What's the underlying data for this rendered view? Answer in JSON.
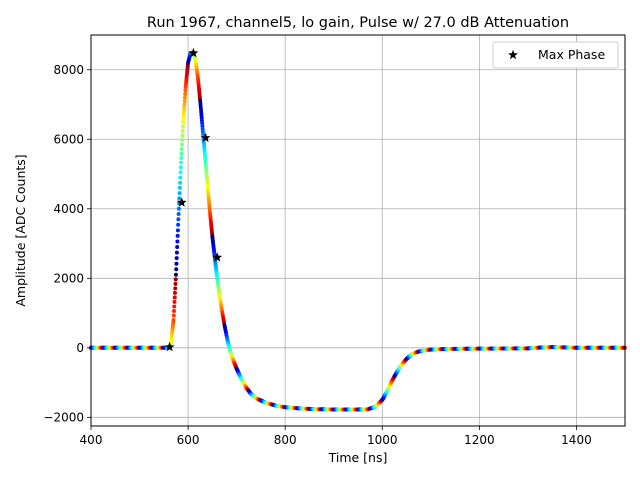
{
  "chart_data": {
    "type": "scatter",
    "title": "Run 1967, channel5, lo gain, Pulse w/ 27.0 dB Attenuation",
    "xlabel": "Time [ns]",
    "ylabel": "Amplitude [ADC Counts]",
    "xlim": [
      400,
      1500
    ],
    "ylim": [
      -2250,
      9000
    ],
    "xticks": [
      400,
      600,
      800,
      1000,
      1200,
      1400
    ],
    "yticks": [
      -2000,
      0,
      2000,
      4000,
      6000,
      8000
    ],
    "grid": true,
    "legend": {
      "position": "top-right",
      "entries": [
        "Max Phase"
      ]
    },
    "series": [
      {
        "name": "Max Phase",
        "marker": "star",
        "color": "#000000",
        "x": [
          562,
          587,
          611,
          636,
          660
        ],
        "y": [
          20,
          4180,
          8480,
          6040,
          2600
        ]
      }
    ],
    "waveform": {
      "marker": "dot",
      "colormap": "jet",
      "x": [
        400,
        540,
        560,
        565,
        570,
        575,
        580,
        585,
        590,
        595,
        600,
        605,
        610,
        615,
        620,
        625,
        630,
        635,
        640,
        645,
        650,
        655,
        660,
        665,
        670,
        675,
        680,
        685,
        690,
        700,
        710,
        720,
        730,
        740,
        760,
        780,
        800,
        830,
        860,
        900,
        940,
        970,
        985,
        1000,
        1010,
        1020,
        1030,
        1040,
        1050,
        1060,
        1070,
        1080,
        1090,
        1100,
        1120,
        1150,
        1200,
        1250,
        1300,
        1330,
        1350,
        1380,
        1400,
        1450,
        1500
      ],
      "y": [
        0,
        0,
        5,
        150,
        800,
        2100,
        3700,
        5200,
        6500,
        7500,
        8200,
        8480,
        8500,
        8300,
        7800,
        7100,
        6300,
        5500,
        4700,
        3900,
        3200,
        2600,
        2000,
        1500,
        1050,
        650,
        300,
        0,
        -250,
        -600,
        -900,
        -1150,
        -1330,
        -1450,
        -1580,
        -1660,
        -1710,
        -1745,
        -1765,
        -1775,
        -1775,
        -1770,
        -1700,
        -1500,
        -1250,
        -950,
        -700,
        -480,
        -320,
        -200,
        -130,
        -90,
        -70,
        -50,
        -40,
        -30,
        -25,
        -20,
        -15,
        10,
        20,
        10,
        0,
        0,
        0
      ]
    }
  }
}
